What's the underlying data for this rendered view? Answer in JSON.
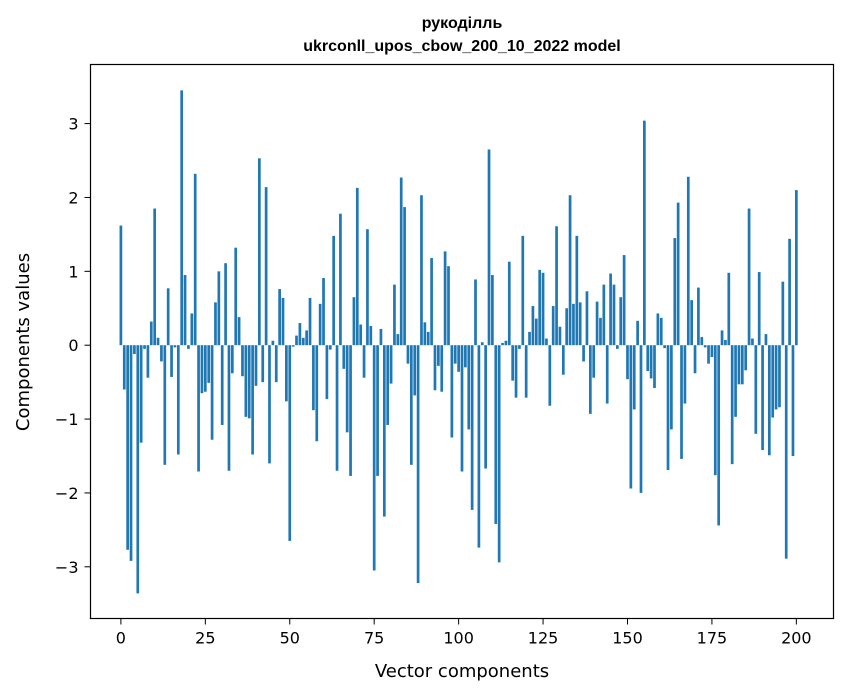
{
  "chart_data": {
    "type": "bar",
    "title": "рукоділль",
    "subtitle": "ukrconll_upos_cbow_200_10_2022 model",
    "xlabel": "Vector components",
    "ylabel": "Components values",
    "xlim": [
      -9,
      211
    ],
    "ylim": [
      -3.7,
      3.8
    ],
    "xticks": [
      0,
      25,
      50,
      75,
      100,
      125,
      150,
      175,
      200
    ],
    "yticks": [
      -3,
      -2,
      -1,
      0,
      1,
      2,
      3
    ],
    "xtick_labels": [
      "0",
      "25",
      "50",
      "75",
      "100",
      "125",
      "150",
      "175",
      "200"
    ],
    "ytick_labels": [
      "−3",
      "−2",
      "−1",
      "0",
      "1",
      "2",
      "3"
    ],
    "grid": false,
    "bar_color": "#1f77b4",
    "values": [
      1.62,
      -0.6,
      -2.77,
      -2.92,
      -0.12,
      -3.36,
      -1.32,
      -0.05,
      -0.44,
      0.32,
      1.85,
      0.1,
      -0.22,
      -1.62,
      0.77,
      -0.43,
      -0.03,
      -1.48,
      3.45,
      0.95,
      -0.05,
      0.43,
      2.32,
      -1.71,
      -0.65,
      -0.63,
      -0.51,
      -1.28,
      0.58,
      1.0,
      -1.08,
      1.11,
      -1.7,
      -0.38,
      1.32,
      0.38,
      -0.42,
      -0.97,
      -0.99,
      -1.48,
      -0.55,
      2.53,
      -0.5,
      2.14,
      -1.6,
      0.06,
      -0.5,
      0.76,
      0.64,
      -0.76,
      -2.65,
      -0.02,
      0.13,
      0.3,
      0.1,
      0.2,
      0.64,
      -0.88,
      -1.3,
      0.56,
      0.91,
      -0.73,
      -0.06,
      1.48,
      -1.7,
      1.78,
      -0.32,
      -1.18,
      -1.77,
      0.65,
      2.13,
      0.28,
      -0.44,
      1.57,
      0.26,
      -3.05,
      -1.77,
      0.22,
      -2.32,
      -1.08,
      -0.52,
      0.82,
      0.15,
      2.27,
      1.87,
      -0.25,
      -1.62,
      -0.68,
      -3.22,
      2.03,
      0.31,
      0.18,
      1.18,
      -0.61,
      -0.28,
      -0.63,
      1.27,
      1.07,
      -1.25,
      -0.25,
      -0.36,
      -1.71,
      -0.3,
      -1.14,
      -2.23,
      0.89,
      -2.74,
      0.04,
      -1.67,
      2.65,
      0.95,
      -2.42,
      -2.94,
      0.03,
      0.06,
      1.13,
      -0.48,
      -0.71,
      -0.05,
      1.48,
      -0.71,
      0.18,
      0.53,
      0.36,
      1.02,
      0.98,
      0.09,
      -0.82,
      0.53,
      1.61,
      0.25,
      -0.4,
      0.5,
      2.03,
      0.56,
      1.48,
      0.58,
      -0.22,
      0.73,
      -0.93,
      -0.44,
      0.59,
      0.37,
      0.82,
      -0.79,
      0.97,
      0.82,
      -0.05,
      0.65,
      1.22,
      -0.46,
      -1.94,
      -0.87,
      0.33,
      -2.0,
      3.04,
      -0.35,
      -0.45,
      -0.58,
      0.43,
      0.37,
      -0.04,
      -1.69,
      -1.14,
      1.45,
      1.93,
      -1.54,
      -0.79,
      2.28,
      0.61,
      -0.38,
      0.78,
      0.11,
      -0.03,
      -0.25,
      -0.16,
      -1.76,
      -2.44,
      0.2,
      0.07,
      0.98,
      -1.61,
      -0.97,
      -0.53,
      -0.53,
      -0.34,
      1.85,
      0.09,
      -1.2,
      0.99,
      -1.42,
      0.15,
      -1.49,
      -0.98,
      -0.87,
      -0.84,
      0.86,
      -2.89,
      1.44,
      -1.5,
      2.1
    ]
  }
}
